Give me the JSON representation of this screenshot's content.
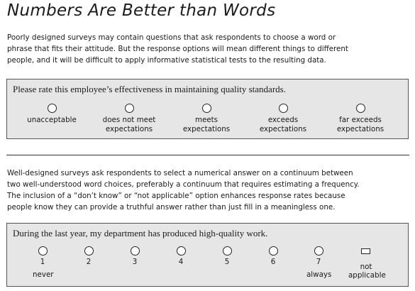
{
  "title": "Numbers Are Better than Words",
  "intro_lines": [
    "Poorly designed surveys may contain questions that ask respondents to choose a word or",
    "phrase that fits their attitude. But the response options will mean different things to different",
    "people, and it will be difficult to apply informative statistical tests to the resulting data."
  ],
  "word_scale": {
    "question": "Please rate this employee’s effectiveness in maintaining quality standards.",
    "options": [
      {
        "line1": "unacceptable",
        "line2": ""
      },
      {
        "line1": "does not meet",
        "line2": "expectations"
      },
      {
        "line1": "meets",
        "line2": "expectations"
      },
      {
        "line1": "exceeds",
        "line2": "expectations"
      },
      {
        "line1": "far exceeds",
        "line2": "expectations"
      }
    ]
  },
  "body_lines": [
    "Well-designed surveys ask respondents to select a numerical answer on a continuum between",
    "two well-understood word choices, preferably a continuum that requires estimating a frequency.",
    "The inclusion of a “don’t know” or “not applicable” option enhances response rates because",
    "people know they can provide a truthful answer rather than just fill in a meaningless one."
  ],
  "number_scale": {
    "question": "During the last year, my department has produced high-quality work.",
    "numbers": [
      "1",
      "2",
      "3",
      "4",
      "5",
      "6",
      "7"
    ],
    "low_anchor": "never",
    "high_anchor": "always",
    "na_label_line1": "not",
    "na_label_line2": "applicable"
  }
}
